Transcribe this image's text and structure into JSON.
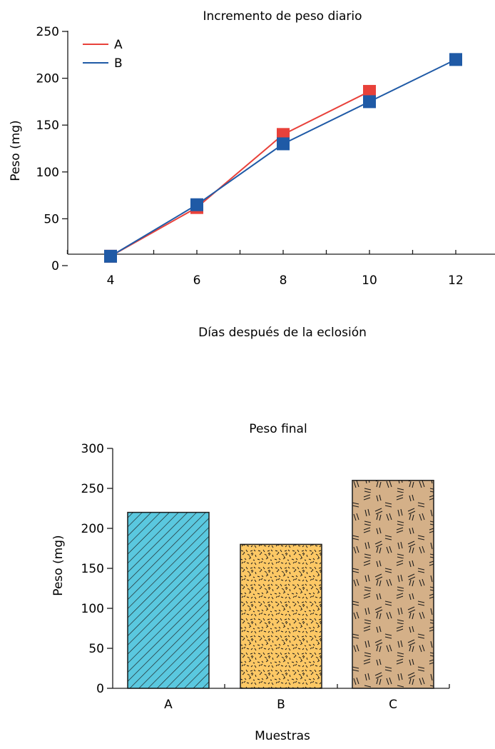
{
  "chart_data": [
    {
      "type": "line",
      "title": "Incremento de peso diario",
      "xlabel": "Días después de la eclosión",
      "ylabel": "Peso (mg)",
      "x": [
        4,
        6,
        8,
        10,
        12
      ],
      "x_ticks": [
        "4",
        "6",
        "8",
        "10",
        "12"
      ],
      "y_ticks": [
        "0",
        "50",
        "100",
        "150",
        "200",
        "250"
      ],
      "ylim": [
        0,
        250
      ],
      "legend_position": "top-left",
      "series": [
        {
          "name": "A",
          "color": "#e8413a",
          "x": [
            4,
            6,
            8,
            10
          ],
          "values": [
            10,
            62,
            140,
            186
          ]
        },
        {
          "name": "B",
          "color": "#1f5aa6",
          "x": [
            4,
            6,
            8,
            10,
            12
          ],
          "values": [
            10,
            65,
            130,
            175,
            220
          ]
        }
      ]
    },
    {
      "type": "bar",
      "title": "Peso final",
      "xlabel": "Muestras",
      "ylabel": "Peso (mg)",
      "categories": [
        "A",
        "B",
        "C"
      ],
      "values": [
        220,
        180,
        260
      ],
      "y_ticks": [
        "0",
        "50",
        "100",
        "150",
        "200",
        "250",
        "300"
      ],
      "ylim": [
        0,
        300
      ],
      "colors": [
        "#5ac8df",
        "#fcc865",
        "#d4b088"
      ]
    }
  ]
}
